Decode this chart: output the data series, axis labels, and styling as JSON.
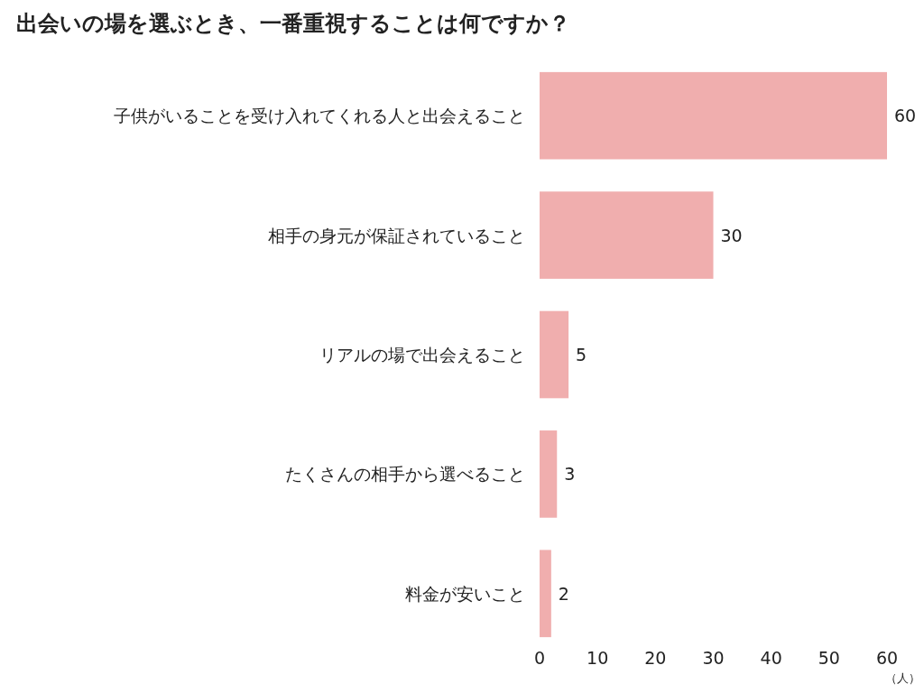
{
  "chart_data": {
    "type": "bar",
    "orientation": "horizontal",
    "title": "出会いの場を選ぶとき、一番重視することは何ですか？",
    "categories": [
      "子供がいることを受け入れてくれる人と出会えること",
      "相手の身元が保証されていること",
      "リアルの場で出会えること",
      "たくさんの相手から選べること",
      "料金が安いこと"
    ],
    "values": [
      60,
      30,
      5,
      3,
      2
    ],
    "color": "#f0aeae",
    "data_labels": true,
    "xlim": [
      0,
      60
    ],
    "xticks": [
      0,
      10,
      20,
      30,
      40,
      50,
      60
    ],
    "xlabel": "（人）"
  }
}
